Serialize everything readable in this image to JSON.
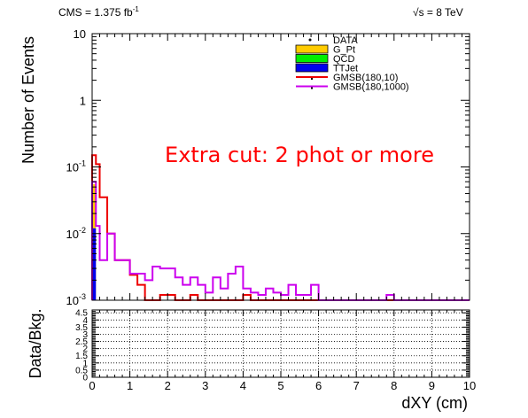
{
  "header": {
    "left_text": "CMS = 1.375 fb",
    "left_sup": "-1",
    "right_text": "√s = 8 TeV"
  },
  "annotation": {
    "text": "Extra cut: 2 phot or more",
    "color": "#ff0000"
  },
  "chart_data": [
    {
      "type": "bar",
      "role": "main-histogram",
      "ylabel": "Number of Events",
      "xlim": [
        0,
        10
      ],
      "ylim": [
        0.001,
        10
      ],
      "yscale": "log",
      "bin_width": 0.2,
      "y_ticks": [
        {
          "value": 10,
          "base": "10",
          "exp": ""
        },
        {
          "value": 1,
          "base": "1",
          "exp": ""
        },
        {
          "value": 0.1,
          "base": "10",
          "exp": "-1"
        },
        {
          "value": 0.01,
          "base": "10",
          "exp": "-2"
        },
        {
          "value": 0.001,
          "base": "10",
          "exp": "-3"
        }
      ],
      "legend_position": "top-right",
      "legend": [
        {
          "name": "DATA",
          "style": "marker",
          "color": "#000000"
        },
        {
          "name": "G_Pt",
          "style": "fill",
          "color": "#ffcc00"
        },
        {
          "name": "QCD",
          "style": "fill",
          "color": "#00ee00"
        },
        {
          "name": "TTJet",
          "style": "fill",
          "color": "#0000ee"
        },
        {
          "name": "GMSB(180,10)",
          "style": "line",
          "color": "#ee0000"
        },
        {
          "name": "GMSB(180,1000)",
          "style": "line",
          "color": "#cc00ee"
        }
      ],
      "stack": [
        {
          "name": "TTJet",
          "color": "#0000ee",
          "bins": [
            [
              0.0,
              0.1,
              0.012
            ]
          ]
        },
        {
          "name": "G_Pt",
          "color": "#ffcc00",
          "bins": [
            [
              0.0,
              0.1,
              0.055
            ]
          ]
        }
      ],
      "series": [
        {
          "name": "GMSB(180,10)",
          "color": "#ee0000",
          "edges": [
            0.0,
            0.1,
            0.2,
            0.4,
            0.6,
            0.8,
            1.0,
            1.2,
            1.4,
            1.6,
            1.8,
            2.0,
            2.2,
            2.4,
            2.6,
            2.8,
            3.0,
            3.2,
            3.4,
            3.6,
            3.8,
            4.0,
            4.2,
            4.4,
            4.6,
            4.8,
            5.0,
            5.2,
            5.4,
            5.6,
            5.8,
            6.0,
            10.0
          ],
          "values": [
            0.15,
            0.11,
            0.035,
            0.01,
            0.004,
            0.004,
            0.0024,
            0.0017,
            0.001,
            0.001,
            0.0012,
            0.0012,
            0.001,
            0.001,
            0.0012,
            0.001,
            0.001,
            0.001,
            0.001,
            0.001,
            0.001,
            0.0012,
            0.001,
            0.001,
            0.001,
            0.001,
            0.001,
            0.001,
            0.001,
            0.001,
            0.001,
            0.001
          ]
        },
        {
          "name": "GMSB(180,1000)",
          "color": "#cc00ee",
          "edges": [
            0.0,
            0.1,
            0.2,
            0.4,
            0.6,
            0.8,
            1.0,
            1.2,
            1.4,
            1.6,
            1.8,
            2.0,
            2.2,
            2.4,
            2.6,
            2.8,
            3.0,
            3.2,
            3.4,
            3.6,
            3.8,
            4.0,
            4.2,
            4.4,
            4.6,
            4.8,
            5.0,
            5.2,
            5.4,
            5.6,
            5.8,
            6.0,
            7.8,
            8.0,
            10.0
          ],
          "values": [
            0.06,
            0.013,
            0.004,
            0.01,
            0.004,
            0.004,
            0.0025,
            0.0025,
            0.002,
            0.0032,
            0.003,
            0.003,
            0.0022,
            0.0017,
            0.0022,
            0.0017,
            0.0013,
            0.0022,
            0.0015,
            0.0025,
            0.0032,
            0.0015,
            0.0013,
            0.0012,
            0.0015,
            0.0013,
            0.0012,
            0.0017,
            0.0012,
            0.0012,
            0.0017,
            0.001,
            0.0012,
            0.001
          ]
        }
      ]
    },
    {
      "type": "scatter",
      "role": "ratio-panel",
      "xlabel": "dXY (cm)",
      "ylabel": "Data/Bkg.",
      "xlim": [
        0,
        10
      ],
      "ylim": [
        0,
        4.7
      ],
      "grid": true,
      "series": [],
      "x_ticks": [
        "0",
        "1",
        "2",
        "3",
        "4",
        "5",
        "6",
        "7",
        "8",
        "9",
        "10"
      ],
      "y_ticks": [
        "0",
        "0.5",
        "1",
        "1.5",
        "2",
        "2.5",
        "3",
        "3.5",
        "4",
        "4.5"
      ]
    }
  ]
}
